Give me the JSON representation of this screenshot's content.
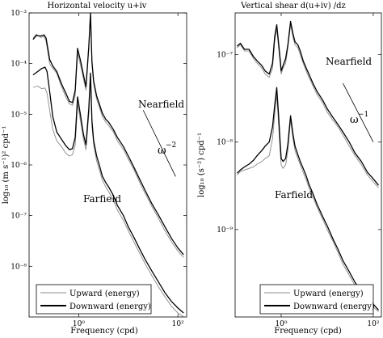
{
  "chart_data": [
    {
      "type": "line",
      "title": "Horizontal velocity u+iv",
      "xlabel": "Frequency (cpd)",
      "ylabel": "log₁₀ (m s⁻¹)² cpd⁻¹",
      "xscale": "log",
      "yscale": "log",
      "xlim": [
        0.1,
        150
      ],
      "ylim": [
        1e-09,
        0.001
      ],
      "x_ticks": [
        1,
        100
      ],
      "x_tick_labels": [
        "10⁰",
        "10²"
      ],
      "y_ticks": [
        1e-08,
        1e-07,
        1e-06,
        1e-05,
        0.0001,
        0.001
      ],
      "y_tick_labels": [
        "10⁻⁸",
        "10⁻⁷",
        "10⁻⁶",
        "10⁻⁵",
        "10⁻⁴",
        "10⁻³"
      ],
      "annotations": [
        {
          "text": "Nearfield",
          "x": 35,
          "y": 1.6e-05
        },
        {
          "text": "Farfield",
          "x": 3.5,
          "y": 5e-07
        },
        {
          "text": "ω",
          "sup": "−2",
          "x": 60,
          "y": 1.3e-06
        }
      ],
      "slope_line": {
        "x": [
          20,
          90
        ],
        "y": [
          1.2e-05,
          5.9e-07
        ],
        "slope": -2
      },
      "legend": {
        "position": "bottom-left",
        "entries": [
          "Upward (energy)",
          "Downward (energy)"
        ]
      },
      "series": [
        {
          "name": "Upward (energy)",
          "group": "Nearfield",
          "color": "#888888",
          "x": [
            0.12,
            0.14,
            0.17,
            0.2,
            0.22,
            0.26,
            0.3,
            0.36,
            0.45,
            0.55,
            0.65,
            0.75,
            0.85,
            0.95,
            1.1,
            1.25,
            1.4,
            1.6,
            1.73,
            1.85,
            2.0,
            2.3,
            2.6,
            3,
            3.5,
            4,
            5,
            6,
            8,
            10,
            13,
            17,
            22,
            30,
            40,
            55,
            75,
            100,
            130
          ],
          "y": [
            0.00032,
            0.00038,
            0.00033,
            0.00034,
            0.00028,
            0.0001,
            8e-05,
            6.5e-05,
            3.5e-05,
            2.2e-05,
            1.6e-05,
            1.5e-05,
            2.4e-05,
            0.00016,
            9e-05,
            5e-05,
            3e-05,
            0.0002,
            0.0009,
            0.0001,
            4e-05,
            2e-05,
            1.4e-05,
            9e-06,
            7e-06,
            6e-06,
            4.5e-06,
            3e-06,
            2e-06,
            1.3e-06,
            8e-07,
            4.5e-07,
            2.7e-07,
            1.5e-07,
            9e-08,
            5e-08,
            3e-08,
            2e-08,
            1.5e-08
          ]
        },
        {
          "name": "Downward (energy)",
          "group": "Nearfield",
          "color": "#000000",
          "x": [
            0.12,
            0.14,
            0.17,
            0.2,
            0.22,
            0.26,
            0.3,
            0.36,
            0.45,
            0.55,
            0.65,
            0.75,
            0.85,
            0.95,
            1.1,
            1.25,
            1.4,
            1.6,
            1.73,
            1.85,
            2.0,
            2.3,
            2.6,
            3,
            3.5,
            4,
            5,
            6,
            8,
            10,
            13,
            17,
            22,
            30,
            40,
            55,
            75,
            100,
            130
          ],
          "y": [
            0.0003,
            0.00036,
            0.00035,
            0.00037,
            0.00032,
            0.00012,
            9e-05,
            7e-05,
            4e-05,
            2.6e-05,
            1.8e-05,
            1.7e-05,
            3e-05,
            0.0002,
            0.00011,
            6e-05,
            3.5e-05,
            0.00022,
            0.001,
            0.00011,
            4.5e-05,
            2.3e-05,
            1.6e-05,
            1.05e-05,
            8e-06,
            7e-06,
            5e-06,
            3.5e-06,
            2.3e-06,
            1.5e-06,
            9e-07,
            5.2e-07,
            3.1e-07,
            1.7e-07,
            1.05e-07,
            6e-08,
            3.5e-08,
            2.3e-08,
            1.7e-08
          ]
        },
        {
          "name": "Upward (energy)",
          "group": "Farfield",
          "color": "#888888",
          "x": [
            0.12,
            0.15,
            0.18,
            0.21,
            0.23,
            0.26,
            0.3,
            0.36,
            0.45,
            0.55,
            0.65,
            0.75,
            0.85,
            0.95,
            1.1,
            1.25,
            1.4,
            1.6,
            1.73,
            1.85,
            2.0,
            2.3,
            2.6,
            3,
            3.5,
            4,
            5,
            6,
            8,
            10,
            13,
            17,
            22,
            30,
            40,
            55,
            75,
            100,
            130
          ],
          "y": [
            3.4e-05,
            3.6e-05,
            3.2e-05,
            3.3e-05,
            2.6e-05,
            1.2e-05,
            5e-06,
            3e-06,
            2.3e-06,
            1.7e-06,
            1.5e-06,
            1.6e-06,
            2.5e-06,
            1.6e-05,
            7e-06,
            3.2e-06,
            2e-06,
            1e-05,
            5e-05,
            6e-06,
            2.5e-06,
            1.2e-06,
            8e-07,
            5e-07,
            3.7e-07,
            3e-07,
            2e-07,
            1.3e-07,
            8e-08,
            5e-08,
            3e-08,
            1.8e-08,
            1.1e-08,
            6.5e-09,
            4e-09,
            2.5e-09,
            1.6e-09,
            1.2e-09,
            1e-09
          ]
        },
        {
          "name": "Downward (energy)",
          "group": "Farfield",
          "color": "#000000",
          "x": [
            0.12,
            0.15,
            0.18,
            0.21,
            0.23,
            0.26,
            0.3,
            0.36,
            0.45,
            0.55,
            0.65,
            0.75,
            0.85,
            0.95,
            1.1,
            1.25,
            1.4,
            1.6,
            1.73,
            1.85,
            2.0,
            2.3,
            2.6,
            3,
            3.5,
            4,
            5,
            6,
            8,
            10,
            13,
            17,
            22,
            30,
            40,
            55,
            75,
            100,
            130
          ],
          "y": [
            6e-05,
            7e-05,
            8e-05,
            8.5e-05,
            7e-05,
            2.8e-05,
            9e-06,
            4.5e-06,
            3.2e-06,
            2.4e-06,
            2e-06,
            2.1e-06,
            3.5e-06,
            2.2e-05,
            9e-06,
            4e-06,
            2.5e-06,
            1.3e-05,
            6.5e-05,
            7.5e-06,
            3e-06,
            1.5e-06,
            1e-06,
            6e-07,
            4.5e-07,
            3.7e-07,
            2.5e-07,
            1.6e-07,
            1e-07,
            6e-08,
            3.7e-08,
            2.2e-08,
            1.35e-08,
            8e-09,
            5e-09,
            3e-09,
            2e-09,
            1.5e-09,
            1.2e-09
          ]
        }
      ]
    },
    {
      "type": "line",
      "title": "Vertical shear d(u+iv) /dz",
      "xlabel": "Frequency (cpd)",
      "ylabel": "log₁₀ (s⁻²) cpd⁻¹",
      "xscale": "log",
      "yscale": "log",
      "xlim": [
        0.1,
        150
      ],
      "ylim": [
        1e-10,
        3e-07
      ],
      "x_ticks": [
        1,
        100
      ],
      "x_tick_labels": [
        "10⁰",
        "10²"
      ],
      "y_ticks": [
        1e-09,
        1e-08,
        1e-07
      ],
      "y_tick_labels": [
        "10⁻⁹",
        "10⁻⁸",
        "10⁻⁷"
      ],
      "annotations": [
        {
          "text": "Nearfield",
          "x": 40,
          "y": 1.3e-07
        },
        {
          "text": "Farfield",
          "x": 4,
          "y": 3e-09
        },
        {
          "text": "ω",
          "sup": "−1",
          "x": 75,
          "y": 3e-08
        }
      ],
      "slope_line": {
        "x": [
          22,
          100
        ],
        "y": [
          4.7e-08,
          1e-08
        ],
        "slope": -1
      },
      "legend": {
        "position": "bottom-right",
        "entries": [
          "Upward (energy)",
          "Downward (energy)"
        ]
      },
      "series": [
        {
          "name": "Upward (energy)",
          "group": "Nearfield",
          "color": "#888888",
          "x": [
            0.11,
            0.13,
            0.16,
            0.2,
            0.25,
            0.3,
            0.38,
            0.45,
            0.55,
            0.65,
            0.72,
            0.8,
            0.88,
            0.95,
            1.0,
            1.1,
            1.25,
            1.4,
            1.6,
            1.8,
            2.0,
            2.3,
            2.6,
            3,
            3.5,
            4,
            5,
            6,
            8,
            10,
            13,
            17,
            22,
            30,
            40,
            55,
            75,
            100,
            130
          ],
          "y": [
            1.2e-07,
            1.3e-07,
            1.1e-07,
            1.1e-07,
            9e-08,
            8e-08,
            7e-08,
            6e-08,
            5.5e-08,
            7e-08,
            1.4e-07,
            2e-07,
            1.2e-07,
            8e-08,
            6e-08,
            7e-08,
            8e-08,
            1.2e-07,
            2.2e-07,
            1.6e-07,
            1.3e-07,
            1.2e-07,
            1e-07,
            8e-08,
            6.5e-08,
            5.5e-08,
            4.3e-08,
            3.5e-08,
            2.8e-08,
            2.2e-08,
            1.8e-08,
            1.5e-08,
            1.2e-08,
            9e-09,
            7e-09,
            5.5e-09,
            4.2e-09,
            3.5e-09,
            3e-09
          ]
        },
        {
          "name": "Downward (energy)",
          "group": "Nearfield",
          "color": "#000000",
          "x": [
            0.11,
            0.13,
            0.16,
            0.2,
            0.25,
            0.3,
            0.38,
            0.45,
            0.55,
            0.65,
            0.72,
            0.8,
            0.88,
            0.95,
            1.0,
            1.1,
            1.25,
            1.4,
            1.6,
            1.8,
            2.0,
            2.3,
            2.6,
            3,
            3.5,
            4,
            5,
            6,
            8,
            10,
            13,
            17,
            22,
            30,
            40,
            55,
            75,
            100,
            130
          ],
          "y": [
            1.25e-07,
            1.35e-07,
            1.15e-07,
            1.15e-07,
            9.5e-08,
            8.5e-08,
            7.5e-08,
            6.5e-08,
            6e-08,
            8e-08,
            1.6e-07,
            2.2e-07,
            1.35e-07,
            9e-08,
            6.5e-08,
            7.5e-08,
            9e-08,
            1.3e-07,
            2.4e-07,
            1.75e-07,
            1.4e-07,
            1.3e-07,
            1.1e-07,
            8.5e-08,
            7e-08,
            6e-08,
            4.6e-08,
            3.8e-08,
            3e-08,
            2.4e-08,
            1.95e-08,
            1.6e-08,
            1.3e-08,
            1e-08,
            7.5e-09,
            6e-09,
            4.5e-09,
            3.8e-09,
            3.2e-09
          ]
        },
        {
          "name": "Upward (energy)",
          "group": "Farfield",
          "color": "#888888",
          "x": [
            0.11,
            0.13,
            0.16,
            0.2,
            0.25,
            0.3,
            0.38,
            0.45,
            0.55,
            0.65,
            0.72,
            0.8,
            0.88,
            0.95,
            1.0,
            1.1,
            1.25,
            1.4,
            1.6,
            1.8,
            2.0,
            2.3,
            2.6,
            3,
            3.5,
            4,
            5,
            6,
            8,
            10,
            13,
            17,
            22,
            30,
            40,
            55,
            75,
            100,
            130
          ],
          "y": [
            4.2e-09,
            4.6e-09,
            4.8e-09,
            5e-09,
            5.2e-09,
            5.6e-09,
            6e-09,
            6.5e-09,
            7e-09,
            1.1e-08,
            2e-08,
            3.5e-08,
            1.6e-08,
            8e-09,
            5.5e-09,
            5e-09,
            5.5e-09,
            8e-09,
            1.8e-08,
            1.1e-08,
            8e-09,
            6.5e-09,
            5.5e-09,
            4.5e-09,
            3.7e-09,
            3e-09,
            2.3e-09,
            1.8e-09,
            1.3e-09,
            1e-09,
            7.5e-10,
            5.5e-10,
            4e-10,
            3e-10,
            2.3e-10,
            1.8e-10,
            1.5e-10,
            1.3e-10,
            1.15e-10
          ]
        },
        {
          "name": "Downward (energy)",
          "group": "Farfield",
          "color": "#000000",
          "x": [
            0.11,
            0.13,
            0.16,
            0.2,
            0.25,
            0.3,
            0.38,
            0.45,
            0.55,
            0.65,
            0.72,
            0.8,
            0.88,
            0.95,
            1.0,
            1.1,
            1.25,
            1.4,
            1.6,
            1.8,
            2.0,
            2.3,
            2.6,
            3,
            3.5,
            4,
            5,
            6,
            8,
            10,
            13,
            17,
            22,
            30,
            40,
            55,
            75,
            100,
            130
          ],
          "y": [
            4.4e-09,
            4.8e-09,
            5.2e-09,
            5.6e-09,
            6.2e-09,
            7e-09,
            8e-09,
            9e-09,
            1e-08,
            1.5e-08,
            2.6e-08,
            4.2e-08,
            2e-08,
            1e-08,
            6.5e-09,
            6e-09,
            6.5e-09,
            9.5e-09,
            2e-08,
            1.25e-08,
            9e-09,
            7.2e-09,
            6e-09,
            5e-09,
            4.1e-09,
            3.3e-09,
            2.5e-09,
            1.95e-09,
            1.4e-09,
            1.1e-09,
            8e-10,
            6e-10,
            4.4e-10,
            3.3e-10,
            2.5e-10,
            1.95e-10,
            1.6e-10,
            1.4e-10,
            1.2e-10
          ]
        }
      ]
    }
  ]
}
